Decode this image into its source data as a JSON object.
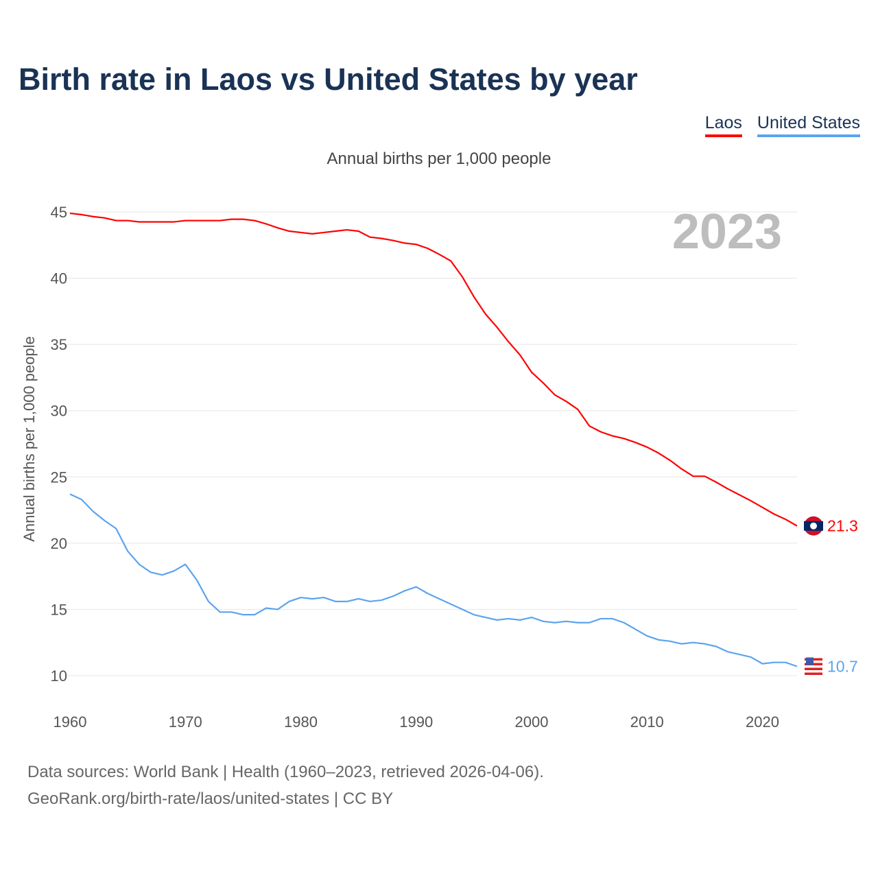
{
  "title": "Birth rate in Laos vs United States by year",
  "subtitle": "Annual births per 1,000 people",
  "source_line1": "Data sources: World Bank | Health (1960–2023, retrieved 2026-04-06).",
  "source_line2": "GeoRank.org/birth-rate/laos/united-states | CC BY",
  "chart_data": {
    "type": "line",
    "title": "Birth rate in Laos vs United States by year",
    "ylabel": "Annual births per 1,000 people",
    "xlabel": "",
    "year_label": "2023",
    "xlim": [
      1960,
      2023
    ],
    "ylim": [
      10,
      45
    ],
    "x_ticks": [
      "1960",
      "1970",
      "1980",
      "1990",
      "2000",
      "2010",
      "2020"
    ],
    "y_ticks": [
      "10",
      "15",
      "20",
      "25",
      "30",
      "35",
      "40",
      "45"
    ],
    "grid": true,
    "legend_position": "top-right",
    "x": [
      1960,
      1961,
      1962,
      1963,
      1964,
      1965,
      1966,
      1967,
      1968,
      1969,
      1970,
      1971,
      1972,
      1973,
      1974,
      1975,
      1976,
      1977,
      1978,
      1979,
      1980,
      1981,
      1982,
      1983,
      1984,
      1985,
      1986,
      1987,
      1988,
      1989,
      1990,
      1991,
      1992,
      1993,
      1994,
      1995,
      1996,
      1997,
      1998,
      1999,
      2000,
      2001,
      2002,
      2003,
      2004,
      2005,
      2006,
      2007,
      2008,
      2009,
      2010,
      2011,
      2012,
      2013,
      2014,
      2015,
      2016,
      2017,
      2018,
      2019,
      2020,
      2021,
      2022,
      2023
    ],
    "series": [
      {
        "name": "Laos",
        "color": "#ff0000",
        "end_label": "21.3",
        "values": [
          44.9,
          44.8,
          44.65,
          44.55,
          44.35,
          44.35,
          44.25,
          44.25,
          44.25,
          44.25,
          44.35,
          44.35,
          44.35,
          44.35,
          44.45,
          44.45,
          44.35,
          44.1,
          43.8,
          43.55,
          43.45,
          43.35,
          43.45,
          43.55,
          43.65,
          43.55,
          43.1,
          43.0,
          42.85,
          42.65,
          42.55,
          42.25,
          41.8,
          41.3,
          40.1,
          38.6,
          37.3,
          36.3,
          35.2,
          34.2,
          32.9,
          32.1,
          31.2,
          30.7,
          30.1,
          28.85,
          28.4,
          28.1,
          27.9,
          27.6,
          27.25,
          26.8,
          26.25,
          25.6,
          25.05,
          25.05,
          24.6,
          24.1,
          23.65,
          23.2,
          22.7,
          22.2,
          21.8,
          21.3
        ]
      },
      {
        "name": "United States",
        "color": "#5ba4ee",
        "end_label": "10.7",
        "values": [
          23.7,
          23.3,
          22.4,
          21.7,
          21.1,
          19.4,
          18.4,
          17.8,
          17.6,
          17.9,
          18.4,
          17.2,
          15.6,
          14.8,
          14.8,
          14.6,
          14.6,
          15.1,
          15.0,
          15.6,
          15.9,
          15.8,
          15.9,
          15.6,
          15.6,
          15.8,
          15.6,
          15.7,
          16.0,
          16.4,
          16.7,
          16.2,
          15.8,
          15.4,
          15.0,
          14.6,
          14.4,
          14.2,
          14.3,
          14.2,
          14.4,
          14.1,
          14.0,
          14.1,
          14.0,
          14.0,
          14.3,
          14.3,
          14.0,
          13.5,
          13.0,
          12.7,
          12.6,
          12.4,
          12.5,
          12.4,
          12.2,
          11.8,
          11.6,
          11.4,
          10.9,
          11.0,
          11.0,
          10.7
        ]
      }
    ]
  }
}
